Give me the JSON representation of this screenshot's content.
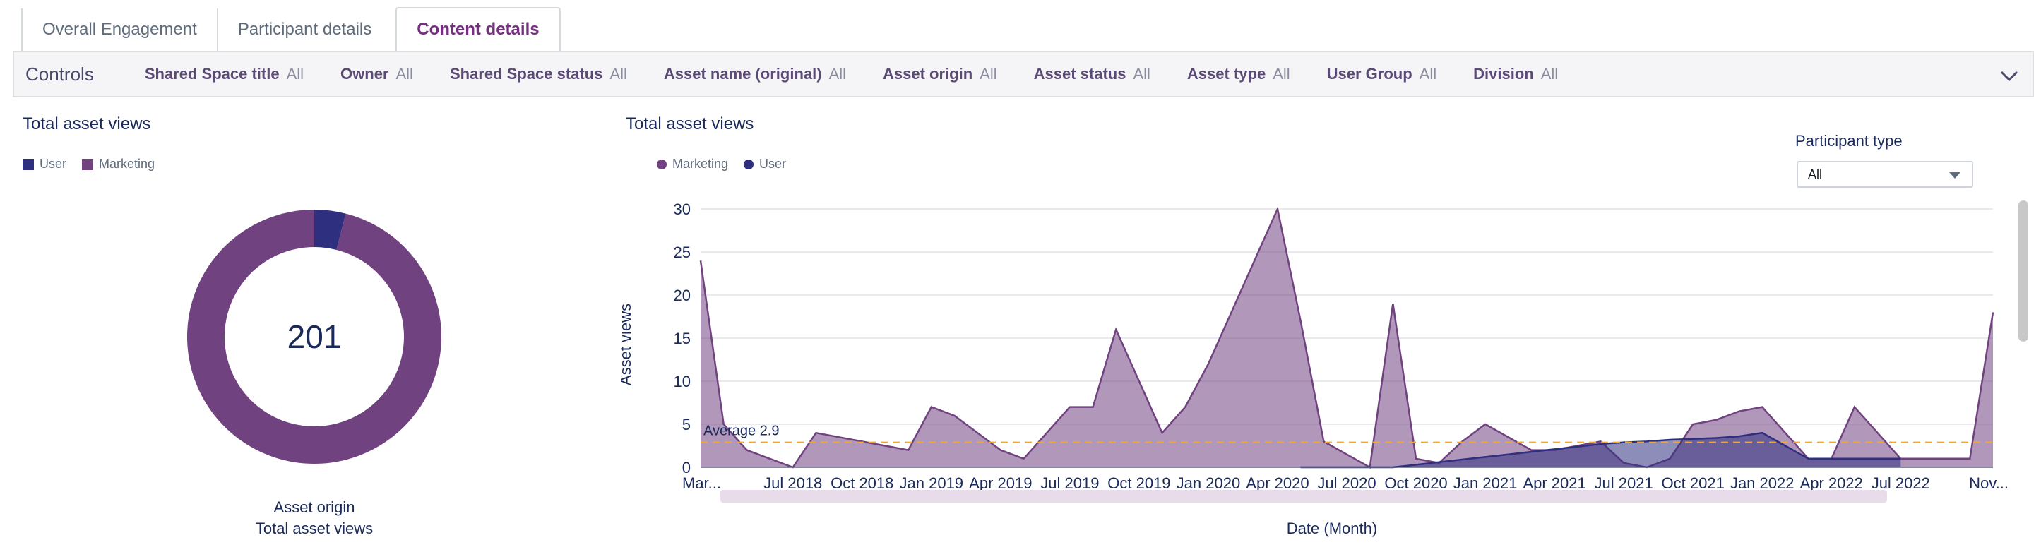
{
  "tabs": [
    {
      "label": "Overall Engagement",
      "active": false
    },
    {
      "label": "Participant details",
      "active": false
    },
    {
      "label": "Content details",
      "active": true
    }
  ],
  "controls": {
    "title": "Controls",
    "filters": [
      {
        "label": "Shared Space title",
        "value": "All"
      },
      {
        "label": "Owner",
        "value": "All"
      },
      {
        "label": "Shared Space status",
        "value": "All"
      },
      {
        "label": "Asset name (original)",
        "value": "All"
      },
      {
        "label": "Asset origin",
        "value": "All"
      },
      {
        "label": "Asset status",
        "value": "All"
      },
      {
        "label": "Asset type",
        "value": "All"
      },
      {
        "label": "User Group",
        "value": "All"
      },
      {
        "label": "Division",
        "value": "All"
      }
    ]
  },
  "donut": {
    "title": "Total asset views",
    "total": "201",
    "legend": [
      {
        "name": "User",
        "color": "#2e2f7f"
      },
      {
        "name": "Marketing",
        "color": "#714280"
      }
    ],
    "caption_line1": "Asset origin",
    "caption_line2": "Total asset views",
    "chart_data": {
      "type": "pie",
      "categories": [
        "User",
        "Marketing"
      ],
      "values": [
        8,
        193
      ]
    }
  },
  "area": {
    "title": "Total asset views",
    "legend": [
      {
        "name": "Marketing",
        "color": "#714280"
      },
      {
        "name": "User",
        "color": "#2e2f7f"
      }
    ],
    "ylabel": "Asset views",
    "xlabel": "Date (Month)",
    "average_label": "Average 2.9",
    "participant_type": {
      "label": "Participant type",
      "value": "All"
    }
  },
  "chart_data": {
    "type": "area",
    "title": "Total asset views",
    "xlabel": "Date (Month)",
    "ylabel": "Asset views",
    "ylim": [
      0,
      30
    ],
    "yticks": [
      0,
      5,
      10,
      15,
      20,
      25,
      30
    ],
    "xticks": [
      {
        "label": "Mar...",
        "x": "2018-03"
      },
      {
        "label": "Jul 2018",
        "x": "2018-07"
      },
      {
        "label": "Oct 2018",
        "x": "2018-10"
      },
      {
        "label": "Jan 2019",
        "x": "2019-01"
      },
      {
        "label": "Apr 2019",
        "x": "2019-04"
      },
      {
        "label": "Jul 2019",
        "x": "2019-07"
      },
      {
        "label": "Oct 2019",
        "x": "2019-10"
      },
      {
        "label": "Jan 2020",
        "x": "2020-01"
      },
      {
        "label": "Apr 2020",
        "x": "2020-04"
      },
      {
        "label": "Jul 2020",
        "x": "2020-07"
      },
      {
        "label": "Oct 2020",
        "x": "2020-10"
      },
      {
        "label": "Jan 2021",
        "x": "2021-01"
      },
      {
        "label": "Apr 2021",
        "x": "2021-04"
      },
      {
        "label": "Jul 2021",
        "x": "2021-07"
      },
      {
        "label": "Oct 2021",
        "x": "2021-10"
      },
      {
        "label": "Jan 2022",
        "x": "2022-01"
      },
      {
        "label": "Apr 2022",
        "x": "2022-04"
      },
      {
        "label": "Jul 2022",
        "x": "2022-07"
      },
      {
        "label": "Nov...",
        "x": "2022-11"
      }
    ],
    "average": 2.9,
    "legend_position": "top-left",
    "series": [
      {
        "name": "Marketing",
        "color": "#714280",
        "x": [
          "2018-03",
          "2018-04",
          "2018-05",
          "2018-06",
          "2018-07",
          "2018-08",
          "2018-09",
          "2018-10",
          "2018-11",
          "2018-12",
          "2019-01",
          "2019-02",
          "2019-03",
          "2019-04",
          "2019-05",
          "2019-06",
          "2019-07",
          "2019-08",
          "2019-09",
          "2019-10",
          "2019-11",
          "2019-12",
          "2020-01",
          "2020-02",
          "2020-03",
          "2020-04",
          "2020-05",
          "2020-06",
          "2020-07",
          "2020-08",
          "2020-09",
          "2020-10",
          "2020-11",
          "2020-12",
          "2021-01",
          "2021-02",
          "2021-03",
          "2021-04",
          "2021-05",
          "2021-06",
          "2021-07",
          "2021-08",
          "2021-09",
          "2021-10",
          "2021-11",
          "2021-12",
          "2022-01",
          "2022-02",
          "2022-03",
          "2022-04",
          "2022-05",
          "2022-06",
          "2022-07",
          "2022-08",
          "2022-09",
          "2022-10",
          "2022-11"
        ],
        "values": [
          24,
          5,
          2,
          1,
          0,
          4,
          3.5,
          3,
          2.5,
          2,
          7,
          6,
          4,
          2,
          1,
          4,
          7,
          7,
          16,
          10,
          4,
          7,
          12,
          18,
          24,
          30,
          17,
          3,
          1.5,
          0,
          19,
          1,
          0.5,
          3,
          5,
          3.5,
          2,
          2,
          2.5,
          3,
          0.5,
          0,
          1,
          5,
          5.5,
          6.5,
          7,
          4,
          1,
          1,
          7,
          4,
          1,
          1,
          1,
          1,
          18
        ]
      },
      {
        "name": "User",
        "color": "#2e2f7f",
        "x": [
          "2020-05",
          "2020-06",
          "2020-07",
          "2020-08",
          "2020-09",
          "2020-10",
          "2020-11",
          "2020-12",
          "2021-01",
          "2021-02",
          "2021-03",
          "2021-04",
          "2021-05",
          "2021-06",
          "2021-07",
          "2021-08",
          "2021-09",
          "2021-10",
          "2021-11",
          "2021-12",
          "2022-01",
          "2022-02",
          "2022-03",
          "2022-04",
          "2022-05",
          "2022-06",
          "2022-07"
        ],
        "values": [
          0,
          0,
          0,
          0,
          0,
          0.3,
          0.6,
          0.9,
          1.2,
          1.5,
          1.8,
          2.1,
          2.4,
          2.7,
          2.9,
          3,
          3.2,
          3.3,
          3.4,
          3.6,
          4,
          2.5,
          1,
          1,
          1,
          1,
          1
        ]
      }
    ]
  }
}
